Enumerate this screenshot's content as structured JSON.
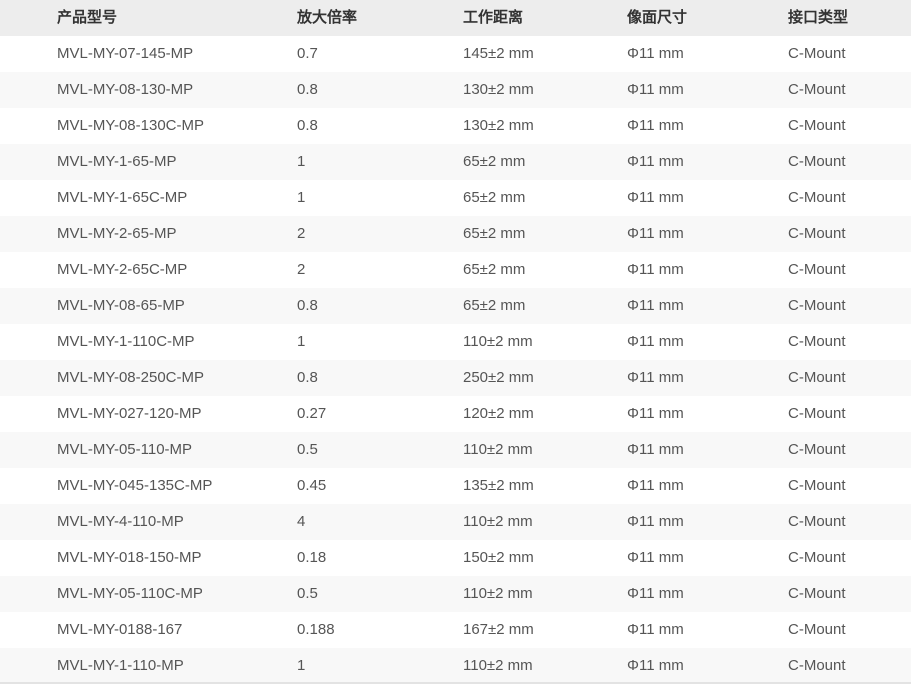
{
  "colors": {
    "header_bg": "#ededed",
    "header_text": "#333333",
    "cell_text": "#555555",
    "row_alt_bg": "#f8f8f8",
    "row_bg": "#ffffff",
    "bottom_border": "#e3e3e3"
  },
  "table": {
    "columns": [
      "产品型号",
      "放大倍率",
      "工作距离",
      "像面尺寸",
      "接口类型"
    ],
    "rows": [
      {
        "model": "MVL-MY-07-145-MP",
        "magnification": "0.7",
        "working_distance": "145±2 mm",
        "image_size": "Φ11 mm",
        "mount": "C-Mount"
      },
      {
        "model": "MVL-MY-08-130-MP",
        "magnification": "0.8",
        "working_distance": "130±2 mm",
        "image_size": "Φ11 mm",
        "mount": "C-Mount"
      },
      {
        "model": "MVL-MY-08-130C-MP",
        "magnification": "0.8",
        "working_distance": "130±2 mm",
        "image_size": "Φ11 mm",
        "mount": "C-Mount"
      },
      {
        "model": "MVL-MY-1-65-MP",
        "magnification": "1",
        "working_distance": "65±2 mm",
        "image_size": "Φ11 mm",
        "mount": "C-Mount"
      },
      {
        "model": "MVL-MY-1-65C-MP",
        "magnification": "1",
        "working_distance": "65±2 mm",
        "image_size": "Φ11 mm",
        "mount": "C-Mount"
      },
      {
        "model": "MVL-MY-2-65-MP",
        "magnification": "2",
        "working_distance": "65±2 mm",
        "image_size": "Φ11 mm",
        "mount": "C-Mount"
      },
      {
        "model": "MVL-MY-2-65C-MP",
        "magnification": "2",
        "working_distance": "65±2 mm",
        "image_size": "Φ11 mm",
        "mount": "C-Mount"
      },
      {
        "model": "MVL-MY-08-65-MP",
        "magnification": "0.8",
        "working_distance": "65±2 mm",
        "image_size": "Φ11 mm",
        "mount": "C-Mount"
      },
      {
        "model": "MVL-MY-1-110C-MP",
        "magnification": "1",
        "working_distance": "110±2 mm",
        "image_size": "Φ11 mm",
        "mount": "C-Mount"
      },
      {
        "model": "MVL-MY-08-250C-MP",
        "magnification": "0.8",
        "working_distance": "250±2 mm",
        "image_size": "Φ11 mm",
        "mount": "C-Mount"
      },
      {
        "model": "MVL-MY-027-120-MP",
        "magnification": "0.27",
        "working_distance": "120±2 mm",
        "image_size": "Φ11 mm",
        "mount": "C-Mount"
      },
      {
        "model": "MVL-MY-05-110-MP",
        "magnification": "0.5",
        "working_distance": "110±2 mm",
        "image_size": "Φ11 mm",
        "mount": "C-Mount"
      },
      {
        "model": "MVL-MY-045-135C-MP",
        "magnification": "0.45",
        "working_distance": "135±2 mm",
        "image_size": "Φ11 mm",
        "mount": "C-Mount"
      },
      {
        "model": "MVL-MY-4-110-MP",
        "magnification": "4",
        "working_distance": "110±2 mm",
        "image_size": "Φ11 mm",
        "mount": "C-Mount"
      },
      {
        "model": "MVL-MY-018-150-MP",
        "magnification": "0.18",
        "working_distance": "150±2 mm",
        "image_size": "Φ11 mm",
        "mount": "C-Mount"
      },
      {
        "model": "MVL-MY-05-110C-MP",
        "magnification": "0.5",
        "working_distance": "110±2 mm",
        "image_size": "Φ11 mm",
        "mount": "C-Mount"
      },
      {
        "model": "MVL-MY-0188-167",
        "magnification": "0.188",
        "working_distance": "167±2 mm",
        "image_size": "Φ11 mm",
        "mount": "C-Mount"
      },
      {
        "model": "MVL-MY-1-110-MP",
        "magnification": "1",
        "working_distance": "110±2 mm",
        "image_size": "Φ11 mm",
        "mount": "C-Mount"
      }
    ]
  }
}
